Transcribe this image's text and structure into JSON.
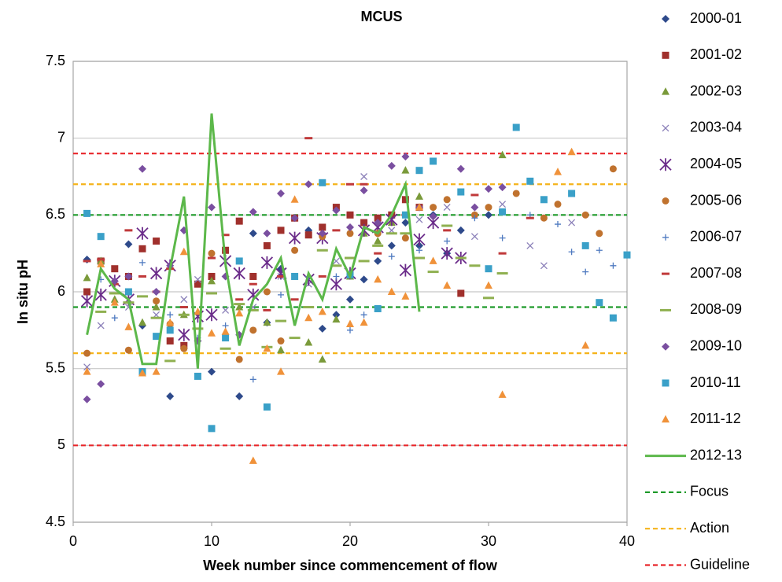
{
  "chart_data": {
    "type": "scatter",
    "title": "MCUS",
    "x_label": "Week number since commencement of flow",
    "y_label": "In situ pH",
    "xlim": [
      0,
      40
    ],
    "xticks": [
      0,
      10,
      20,
      30,
      40
    ],
    "ylim": [
      4.5,
      7.5
    ],
    "yticks": [
      4.5,
      5,
      5.5,
      6,
      6.5,
      7,
      7.5
    ],
    "grid": true,
    "legend": "right",
    "series": [
      {
        "name": "2000-01",
        "color": "#2E4A8B",
        "marker": "diamond",
        "x": [
          1,
          4,
          5,
          7,
          8,
          10,
          12,
          13,
          14,
          15,
          17,
          18,
          19,
          20,
          21,
          22,
          23,
          24,
          25,
          26,
          27,
          28,
          30
        ],
        "values": [
          6.21,
          6.31,
          5.78,
          5.32,
          6.4,
          5.48,
          5.32,
          6.38,
          5.8,
          6.15,
          6.4,
          5.76,
          5.85,
          5.95,
          6.08,
          6.2,
          6.3,
          6.45,
          6.3,
          6.5,
          6.25,
          6.4,
          6.5
        ]
      },
      {
        "name": "2001-02",
        "color": "#A0302C",
        "marker": "square",
        "x": [
          1,
          2,
          3,
          4,
          5,
          6,
          7,
          8,
          9,
          10,
          11,
          12,
          13,
          14,
          15,
          16,
          17,
          18,
          19,
          20,
          21,
          22,
          23,
          24,
          25,
          28
        ],
        "values": [
          6.0,
          6.2,
          6.15,
          6.1,
          6.28,
          6.33,
          5.68,
          5.65,
          6.05,
          6.1,
          6.27,
          6.46,
          6.1,
          6.3,
          6.4,
          6.48,
          6.37,
          6.42,
          6.55,
          6.5,
          6.45,
          6.48,
          6.5,
          6.6,
          6.55,
          5.99
        ]
      },
      {
        "name": "2002-03",
        "color": "#7A9A3A",
        "marker": "triangle",
        "x": [
          1,
          2,
          3,
          5,
          6,
          8,
          10,
          12,
          14,
          15,
          17,
          18,
          19,
          20,
          21,
          22,
          23,
          24,
          25,
          31
        ],
        "values": [
          6.09,
          6.2,
          5.95,
          5.8,
          5.9,
          5.85,
          6.07,
          5.9,
          5.8,
          5.62,
          5.67,
          5.56,
          5.82,
          6.1,
          6.38,
          6.33,
          6.45,
          6.79,
          6.62,
          6.89
        ]
      },
      {
        "name": "2003-04",
        "color": "#8A7FB8",
        "marker": "x",
        "x": [
          1,
          2,
          4,
          6,
          8,
          9,
          11,
          13,
          15,
          17,
          19,
          21,
          23,
          25,
          27,
          29,
          31,
          33,
          34,
          36
        ],
        "values": [
          5.51,
          5.78,
          5.9,
          5.85,
          5.95,
          6.08,
          5.88,
          5.9,
          6.1,
          6.05,
          6.2,
          6.75,
          6.4,
          6.47,
          6.55,
          6.36,
          6.57,
          6.3,
          6.17,
          6.45
        ]
      },
      {
        "name": "2004-05",
        "color": "#6B2C8A",
        "marker": "asterisk",
        "x": [
          1,
          2,
          3,
          4,
          5,
          6,
          7,
          8,
          9,
          10,
          11,
          12,
          13,
          14,
          15,
          16,
          17,
          18,
          19,
          20,
          21,
          22,
          23,
          24,
          25,
          26,
          27,
          28
        ],
        "values": [
          5.94,
          5.98,
          6.07,
          5.95,
          6.38,
          6.12,
          6.17,
          5.72,
          5.84,
          5.85,
          6.2,
          6.12,
          5.98,
          6.19,
          6.12,
          6.35,
          6.08,
          6.35,
          6.05,
          6.12,
          6.4,
          6.42,
          6.47,
          6.14,
          6.34,
          6.45,
          6.25,
          6.22
        ]
      },
      {
        "name": "2005-06",
        "color": "#C0722E",
        "marker": "circle",
        "x": [
          1,
          4,
          5,
          6,
          7,
          8,
          10,
          12,
          13,
          14,
          15,
          16,
          18,
          20,
          22,
          24,
          26,
          27,
          29,
          30,
          32,
          34,
          35,
          37,
          38,
          39
        ],
        "values": [
          5.6,
          5.62,
          5.48,
          5.94,
          5.79,
          5.63,
          6.25,
          5.56,
          5.75,
          6.0,
          5.68,
          6.27,
          6.36,
          6.38,
          6.38,
          6.35,
          6.55,
          6.6,
          6.5,
          6.55,
          6.64,
          6.48,
          6.57,
          6.5,
          6.38,
          6.8
        ]
      },
      {
        "name": "2006-07",
        "color": "#4F7AC0",
        "marker": "plus",
        "x": [
          2,
          3,
          5,
          7,
          9,
          11,
          13,
          15,
          17,
          19,
          20,
          21,
          23,
          25,
          27,
          29,
          31,
          33,
          35,
          36,
          37,
          38,
          39
        ],
        "values": [
          6.08,
          5.83,
          6.19,
          5.85,
          5.7,
          5.78,
          5.43,
          5.98,
          6.1,
          6.1,
          5.75,
          5.85,
          6.23,
          6.27,
          6.33,
          6.48,
          6.35,
          6.5,
          6.44,
          6.26,
          6.13,
          6.27,
          6.17
        ]
      },
      {
        "name": "2007-08",
        "color": "#C0393A",
        "marker": "dash",
        "x": [
          1,
          2,
          3,
          4,
          5,
          6,
          7,
          8,
          10,
          11,
          12,
          13,
          14,
          15,
          16,
          17,
          18,
          19,
          20,
          21,
          22,
          24,
          27,
          29,
          31,
          33
        ],
        "values": [
          6.2,
          6.21,
          6.05,
          6.4,
          6.1,
          6.0,
          6.15,
          5.9,
          6.22,
          6.37,
          5.95,
          6.05,
          5.88,
          6.1,
          5.95,
          7.0,
          6.1,
          6.4,
          6.7,
          6.7,
          6.25,
          6.5,
          6.4,
          6.63,
          6.25,
          6.48
        ]
      },
      {
        "name": "2008-09",
        "color": "#8FB050",
        "marker": "longdash",
        "x": [
          2,
          3,
          4,
          5,
          6,
          7,
          8,
          9,
          10,
          11,
          12,
          13,
          14,
          15,
          16,
          17,
          18,
          19,
          20,
          21,
          22,
          23,
          24,
          25,
          26,
          27,
          28,
          29,
          30,
          31
        ],
        "values": [
          5.87,
          5.99,
          5.93,
          5.97,
          5.83,
          5.55,
          5.85,
          5.76,
          5.99,
          5.63,
          5.92,
          5.88,
          5.64,
          5.81,
          5.7,
          5.9,
          6.27,
          6.17,
          6.22,
          6.2,
          6.3,
          6.38,
          6.38,
          6.22,
          6.13,
          6.43,
          6.22,
          6.17,
          5.96,
          6.12
        ]
      },
      {
        "name": "2009-10",
        "color": "#7A4FA0",
        "marker": "diamond",
        "x": [
          1,
          2,
          3,
          4,
          5,
          6,
          7,
          8,
          9,
          10,
          11,
          12,
          13,
          14,
          15,
          16,
          17,
          18,
          19,
          20,
          21,
          22,
          23,
          24,
          25,
          26,
          28,
          29,
          30,
          31
        ],
        "values": [
          5.3,
          5.4,
          6.07,
          6.1,
          6.8,
          6.0,
          6.17,
          6.4,
          5.68,
          6.55,
          6.1,
          5.72,
          6.52,
          6.38,
          6.64,
          6.48,
          6.7,
          6.38,
          6.53,
          6.42,
          6.66,
          6.45,
          6.82,
          6.88,
          6.55,
          6.49,
          6.8,
          6.55,
          6.67,
          6.68
        ]
      },
      {
        "name": "2010-11",
        "color": "#3AA0C8",
        "marker": "square",
        "x": [
          1,
          2,
          4,
          5,
          6,
          7,
          9,
          10,
          11,
          12,
          14,
          16,
          18,
          20,
          22,
          24,
          25,
          26,
          28,
          30,
          31,
          32,
          33,
          34,
          36,
          37,
          38,
          39,
          40
        ],
        "values": [
          6.51,
          6.36,
          6.0,
          5.48,
          5.71,
          5.75,
          5.45,
          5.11,
          5.7,
          6.2,
          5.25,
          6.1,
          6.71,
          6.11,
          5.89,
          6.5,
          6.79,
          6.85,
          6.65,
          6.15,
          6.52,
          7.07,
          6.72,
          6.6,
          6.64,
          6.3,
          5.93,
          5.83,
          6.24
        ]
      },
      {
        "name": "2011-12",
        "color": "#F0923A",
        "marker": "triangle",
        "x": [
          1,
          2,
          3,
          4,
          5,
          6,
          7,
          8,
          9,
          10,
          11,
          12,
          13,
          14,
          15,
          16,
          17,
          18,
          20,
          21,
          22,
          23,
          24,
          25,
          26,
          27,
          30,
          31,
          35,
          36,
          37
        ],
        "values": [
          5.48,
          6.18,
          5.93,
          5.77,
          5.47,
          5.48,
          5.8,
          6.26,
          5.87,
          5.73,
          5.74,
          5.86,
          4.9,
          5.63,
          5.48,
          6.6,
          5.83,
          5.87,
          5.79,
          5.8,
          6.08,
          6.0,
          5.97,
          6.55,
          6.2,
          6.04,
          6.04,
          5.33,
          6.78,
          6.91,
          5.65
        ]
      },
      {
        "name": "2012-13",
        "color": "#5CB84A",
        "marker": "line",
        "x": [
          1,
          2,
          3,
          4,
          5,
          6,
          7,
          8,
          9,
          10,
          11,
          12,
          13,
          14,
          15,
          16,
          17,
          18,
          19,
          20,
          21,
          22,
          23,
          24,
          25
        ],
        "values": [
          5.72,
          6.15,
          6.02,
          5.95,
          5.53,
          5.53,
          6.15,
          6.62,
          5.5,
          7.16,
          6.18,
          5.65,
          5.95,
          6.05,
          6.22,
          5.78,
          6.12,
          5.95,
          6.28,
          6.1,
          6.42,
          6.38,
          6.5,
          6.7,
          5.87
        ]
      }
    ],
    "reference_lines": [
      {
        "name": "Focus",
        "color": "#1E9A2A",
        "values": [
          5.9,
          6.5
        ]
      },
      {
        "name": "Action",
        "color": "#F5B31A",
        "values": [
          5.6,
          6.7
        ]
      },
      {
        "name": "Guideline",
        "color": "#E8262A",
        "values": [
          5.0,
          6.9
        ]
      }
    ]
  }
}
